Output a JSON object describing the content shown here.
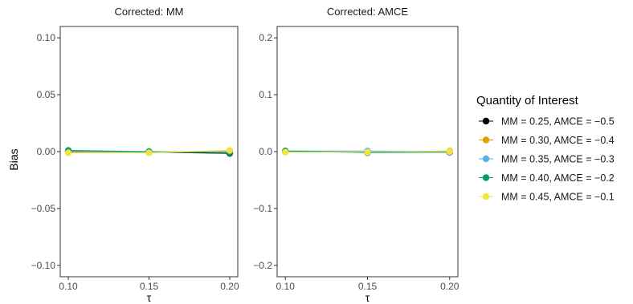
{
  "chart_data": {
    "type": "line",
    "ylabel": "Bias",
    "xlabel": "τ",
    "x": [
      0.1,
      0.15,
      0.2
    ],
    "x_ticks": [
      "0.10",
      "0.15",
      "0.20"
    ],
    "legend": {
      "title": "Quantity of Interest",
      "placement": "right",
      "entries": [
        {
          "label": "MM = 0.25, AMCE = −0.5",
          "color": "#000000"
        },
        {
          "label": "MM = 0.30, AMCE = −0.4",
          "color": "#E69F00"
        },
        {
          "label": "MM = 0.35, AMCE = −0.3",
          "color": "#56B4E9"
        },
        {
          "label": "MM = 0.40, AMCE = −0.2",
          "color": "#009E73"
        },
        {
          "label": "MM = 0.45, AMCE = −0.1",
          "color": "#F0E442"
        }
      ]
    },
    "panels": [
      {
        "title": "Corrected: MM",
        "ylim": [
          -0.11,
          0.11
        ],
        "y_ticks": [
          0.1,
          0.05,
          0.0,
          -0.05,
          -0.1
        ],
        "y_tick_labels": [
          "0.10",
          "0.05",
          "0.00",
          "−0.05",
          "−0.10"
        ],
        "series": [
          {
            "name": "MM = 0.25, AMCE = −0.5",
            "values": [
              0.0,
              -0.0005,
              -0.0015
            ]
          },
          {
            "name": "MM = 0.30, AMCE = −0.4",
            "values": [
              -0.0005,
              -0.0005,
              0.0005
            ]
          },
          {
            "name": "MM = 0.35, AMCE = −0.3",
            "values": [
              0.0005,
              -0.0005,
              -0.0005
            ]
          },
          {
            "name": "MM = 0.40, AMCE = −0.2",
            "values": [
              0.001,
              0.0,
              -0.001
            ]
          },
          {
            "name": "MM = 0.45, AMCE = −0.1",
            "values": [
              -0.001,
              -0.001,
              0.001
            ]
          }
        ]
      },
      {
        "title": "Corrected: AMCE",
        "ylim": [
          -0.22,
          0.22
        ],
        "y_ticks": [
          0.2,
          0.1,
          0.0,
          -0.1,
          -0.2
        ],
        "y_tick_labels": [
          "0.2",
          "0.1",
          "0.0",
          "−0.1",
          "−0.2"
        ],
        "series": [
          {
            "name": "MM = 0.25, AMCE = −0.5",
            "values": [
              0.0005,
              -0.001,
              -0.001
            ]
          },
          {
            "name": "MM = 0.30, AMCE = −0.4",
            "values": [
              0.0,
              -0.001,
              0.001
            ]
          },
          {
            "name": "MM = 0.35, AMCE = −0.3",
            "values": [
              0.001,
              0.001,
              0.0
            ]
          },
          {
            "name": "MM = 0.40, AMCE = −0.2",
            "values": [
              0.001,
              -0.002,
              -0.001
            ]
          },
          {
            "name": "MM = 0.45, AMCE = −0.1",
            "values": [
              -0.001,
              -0.001,
              0.0
            ]
          }
        ]
      }
    ]
  }
}
